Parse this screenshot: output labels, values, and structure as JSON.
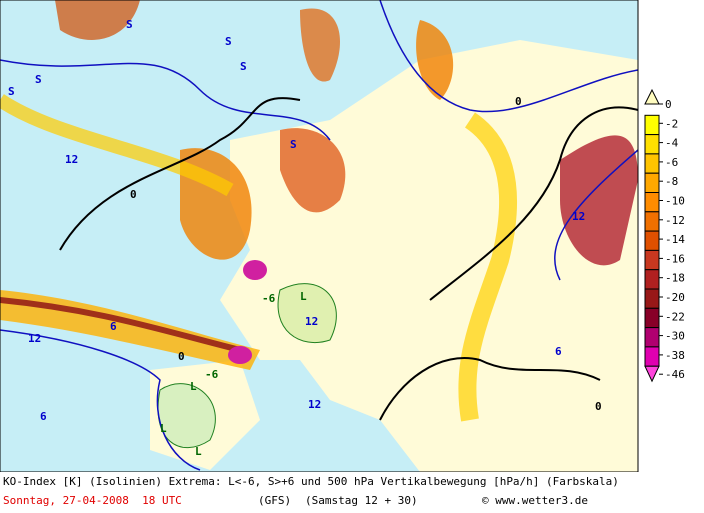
{
  "legend": {
    "labels": [
      "0",
      "-2",
      "-4",
      "-6",
      "-8",
      "-10",
      "-12",
      "-14",
      "-16",
      "-18",
      "-20",
      "-22",
      "-30",
      "-38",
      "-46"
    ]
  },
  "map": {
    "labels": [
      "S",
      "S",
      "S",
      "S",
      "S",
      "12",
      "12",
      "12",
      "12",
      "6",
      "6",
      "0",
      "0",
      "0",
      "0",
      "-6",
      "-6",
      "L",
      "L",
      "L",
      "L",
      "S",
      "12",
      "6"
    ]
  },
  "caption": {
    "line1": "KO-Index [K] (Isolinien) Extrema: L<-6, S>+6 und 500 hPa Vertikalbewegung [hPa/h] (Farbskala)",
    "date": "Sonntag, 27-04-2008  18 UTC",
    "model": "(GFS)",
    "run": "(Samstag 12 + 30)",
    "copyright": "© www.wetter3.de"
  }
}
